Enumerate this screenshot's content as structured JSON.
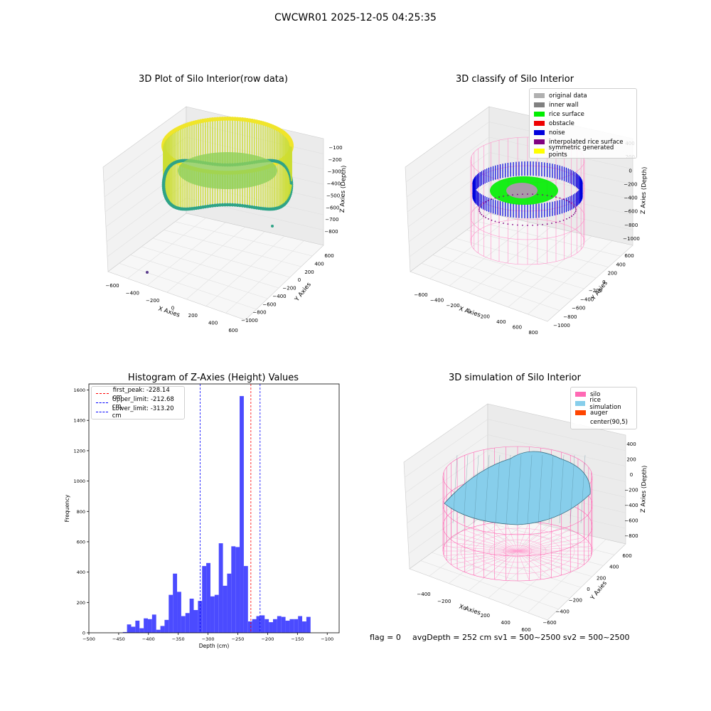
{
  "suptitle": "CWCWR01 2025-12-05 04:25:35",
  "panels": {
    "raw": {
      "title": "3D Plot of Silo Interior(row data)",
      "xlabel": "X Axies",
      "ylabel": "Y Axies",
      "zlabel": "Z Axies (Depth)",
      "xticks": [
        "−600",
        "−400",
        "−200",
        "0",
        "200",
        "400",
        "600"
      ],
      "yticks": [
        "−1000",
        "−800",
        "−600",
        "−400",
        "−200",
        "0",
        "200",
        "400",
        "600"
      ],
      "zticks": [
        "−100",
        "−200",
        "−300",
        "−400",
        "−500",
        "−600",
        "−700",
        "−800"
      ]
    },
    "classify": {
      "title": "3D classify of Silo Interior",
      "xlabel": "X Axies",
      "ylabel": "Y Axies",
      "zlabel": "Z Axies (Depth)",
      "xticks": [
        "−600",
        "−400",
        "−200",
        "0",
        "200",
        "400",
        "600",
        "800"
      ],
      "yticks": [
        "−1000",
        "−800",
        "−600",
        "−400",
        "−200",
        "0",
        "200",
        "400",
        "600"
      ],
      "zticks": [
        "400",
        "200",
        "0",
        "−200",
        "−400",
        "−600",
        "−800",
        "−1000"
      ],
      "legend": [
        {
          "label": "original data",
          "color": "#b0b0b0"
        },
        {
          "label": "inner wall",
          "color": "#808080"
        },
        {
          "label": "rice surface",
          "color": "#00ee00"
        },
        {
          "label": "obstacle",
          "color": "#ee0000"
        },
        {
          "label": "noise",
          "color": "#0000dd"
        },
        {
          "label": "interpolated rice surface",
          "color": "#800080"
        },
        {
          "label": "symmetric generated points",
          "color": "#ffff00"
        }
      ]
    },
    "simulation": {
      "title": "3D simulation of Silo Interior",
      "xlabel": "X Axies",
      "ylabel": "Y Axies",
      "zlabel": "Z Axies (Depth)",
      "xticks": [
        "−400",
        "−200",
        "0",
        "200",
        "400",
        "600"
      ],
      "yticks": [
        "−600",
        "−400",
        "−200",
        "0",
        "200",
        "400",
        "600"
      ],
      "zticks": [
        "400",
        "200",
        "0",
        "−200",
        "−400",
        "−600",
        "−800"
      ],
      "legend": [
        {
          "label": "silo",
          "color": "#ff69b4"
        },
        {
          "label": "rice simulation",
          "color": "#87ceeb"
        },
        {
          "label": "auger",
          "color": "#ff4500"
        },
        {
          "label": "center(90,5)",
          "color": "#ffffff"
        }
      ]
    }
  },
  "footer": {
    "flag": "flag = 0",
    "stats": "avgDepth = 252 cm  sv1 = 500~2500  sv2 = 500~2500"
  },
  "chart_data": {
    "type": "bar",
    "title": "Histogram of Z-Axies (Height) Values",
    "xlabel": "Depth (cm)",
    "ylabel": "Frequency",
    "xlim": [
      -500,
      -80
    ],
    "ylim": [
      0,
      1640
    ],
    "xticks": [
      -500,
      -450,
      -400,
      -350,
      -300,
      -250,
      -200,
      -150,
      -100
    ],
    "yticks": [
      0,
      200,
      400,
      600,
      800,
      1000,
      1200,
      1400,
      1600
    ],
    "bin_width": 7,
    "bins_start": [
      -443,
      -436,
      -429,
      -422,
      -415,
      -408,
      -401,
      -394,
      -387,
      -380,
      -373,
      -366,
      -359,
      -352,
      -345,
      -338,
      -331,
      -324,
      -317,
      -310,
      -303,
      -296,
      -289,
      -282,
      -275,
      -268,
      -261,
      -254,
      -247,
      -240,
      -233,
      -226,
      -219,
      -212,
      -205,
      -198,
      -191,
      -184,
      -177,
      -170,
      -163,
      -156,
      -149,
      -142,
      -135,
      -128,
      -121,
      -114,
      -107
    ],
    "values": [
      5,
      55,
      40,
      80,
      30,
      95,
      90,
      120,
      20,
      45,
      85,
      250,
      390,
      270,
      110,
      130,
      225,
      150,
      210,
      440,
      460,
      240,
      250,
      590,
      310,
      390,
      570,
      565,
      1560,
      440,
      75,
      90,
      110,
      115,
      90,
      70,
      90,
      110,
      105,
      80,
      90,
      90,
      110,
      75,
      105,
      0,
      0,
      0,
      0
    ],
    "lines": [
      {
        "label": "first_peak: -228.14 cm",
        "x": -228.14,
        "color": "#ff0000"
      },
      {
        "label": "Upper_limit: -212.68 cm",
        "x": -212.68,
        "color": "#0000ff"
      },
      {
        "label": "Lower_limit: -313.20 cm",
        "x": -313.2,
        "color": "#0000ff"
      }
    ],
    "bar_color": "#4b4bff"
  }
}
